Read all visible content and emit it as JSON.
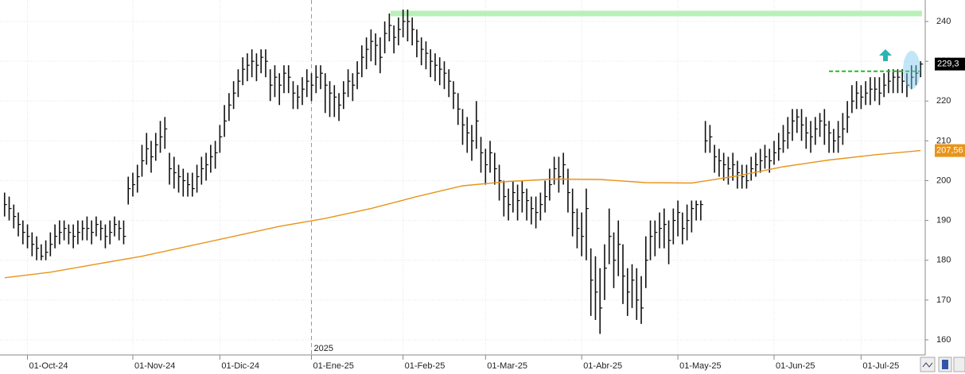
{
  "chart_data": {
    "type": "ohlc",
    "x": [
      -5,
      -4,
      -3,
      -2,
      -1,
      0,
      1,
      2,
      3,
      4,
      5,
      6,
      7,
      8,
      9,
      10,
      11,
      12,
      13,
      14,
      15,
      16,
      17,
      18,
      19,
      20,
      21,
      22,
      23,
      24,
      25,
      26,
      27,
      28,
      29,
      30,
      31,
      32,
      33,
      34,
      35,
      36,
      37,
      38,
      39,
      40,
      41,
      42,
      43,
      44,
      45,
      46,
      47,
      48,
      49,
      50,
      51,
      52,
      53,
      54,
      55,
      56,
      57,
      58,
      59,
      60,
      61,
      62,
      63,
      64,
      65,
      66,
      67,
      68,
      69,
      70,
      71,
      72,
      73,
      74,
      75,
      76,
      77,
      78,
      79,
      80,
      81,
      82,
      83,
      84,
      85,
      86,
      87,
      88,
      89,
      90,
      91,
      92,
      93,
      94,
      95,
      96,
      97,
      98,
      99,
      100,
      101,
      102,
      103,
      104,
      105,
      106,
      107,
      108,
      109,
      110,
      111,
      112,
      113,
      114,
      115,
      116,
      117,
      118,
      119,
      120,
      121,
      122,
      123,
      124,
      125,
      126,
      127,
      128,
      129,
      130,
      131,
      132,
      133,
      134,
      135,
      136,
      137,
      138,
      139,
      140,
      141,
      142,
      143,
      144,
      145,
      146,
      147,
      148,
      149,
      150,
      151,
      152,
      153,
      154,
      155,
      156,
      157,
      158,
      159,
      160,
      161,
      162,
      163,
      164,
      165,
      166,
      167,
      168,
      169,
      170,
      171,
      172,
      173,
      174,
      175,
      176,
      177,
      178,
      179,
      180,
      181,
      182,
      183,
      184,
      185,
      186,
      187,
      188,
      189,
      190,
      191,
      192,
      193,
      194,
      195
    ],
    "high": [
      197,
      196,
      194,
      192,
      190,
      189,
      187,
      186,
      184,
      185,
      187,
      189,
      190,
      190,
      189,
      189,
      190,
      190,
      191,
      190,
      191,
      190,
      189,
      190,
      191,
      190,
      190,
      201,
      202,
      204,
      209,
      212,
      210,
      212,
      215,
      216,
      207,
      206,
      204,
      203,
      202,
      202,
      204,
      206,
      207,
      209,
      210,
      214,
      219,
      222,
      225,
      228,
      231,
      232,
      233,
      232,
      233,
      233,
      228,
      229,
      227,
      229,
      229,
      225,
      224,
      226,
      228,
      227,
      229,
      229,
      227,
      225,
      224,
      222,
      225,
      228,
      227,
      230,
      234,
      236,
      238,
      237,
      236,
      240,
      242,
      239,
      241,
      243,
      243,
      241,
      238,
      236,
      235,
      233,
      232,
      231,
      230,
      228,
      225,
      222,
      218,
      216,
      214,
      220,
      211,
      208,
      210,
      207,
      204,
      200,
      198,
      200,
      199,
      200,
      198,
      196,
      196,
      197,
      200,
      203,
      206,
      206,
      207,
      203,
      198,
      193,
      192,
      198,
      183,
      181,
      178,
      184,
      193,
      187,
      190,
      184,
      178,
      179,
      178,
      176,
      186,
      190,
      190,
      192,
      193,
      190,
      193,
      195,
      192,
      194,
      195,
      195,
      195,
      215,
      214,
      209,
      208,
      207,
      206,
      207,
      205,
      204,
      204,
      206,
      207,
      208,
      209,
      208,
      210,
      212,
      214,
      216,
      218,
      218,
      218,
      216,
      215,
      216,
      217,
      218,
      215,
      213,
      215,
      217,
      220,
      224,
      225,
      224,
      225,
      226,
      226,
      226,
      227,
      228,
      228,
      228,
      228,
      227,
      229,
      229,
      230
    ],
    "low": [
      191,
      190,
      188,
      186,
      184,
      183,
      181,
      180,
      180,
      180,
      181,
      183,
      184,
      185,
      184,
      183,
      184,
      185,
      185,
      184,
      186,
      185,
      183,
      184,
      186,
      185,
      184,
      194,
      196,
      197,
      201,
      204,
      202,
      205,
      207,
      208,
      199,
      198,
      197,
      196,
      196,
      196,
      197,
      199,
      200,
      202,
      203,
      207,
      211,
      215,
      218,
      221,
      224,
      225,
      226,
      225,
      227,
      226,
      220,
      221,
      219,
      222,
      222,
      218,
      218,
      219,
      221,
      220,
      222,
      223,
      217,
      216,
      216,
      215,
      218,
      221,
      220,
      223,
      226,
      228,
      230,
      229,
      227,
      232,
      235,
      232,
      234,
      236,
      235,
      234,
      231,
      229,
      228,
      226,
      225,
      224,
      223,
      221,
      218,
      214,
      209,
      207,
      205,
      208,
      202,
      199,
      202,
      199,
      195,
      191,
      190,
      192,
      190,
      192,
      190,
      189,
      188,
      190,
      192,
      195,
      199,
      197,
      199,
      192,
      186,
      183,
      181,
      180,
      166,
      165,
      161.5,
      170,
      179,
      173,
      176,
      169,
      166,
      168,
      165,
      164,
      173,
      180,
      181,
      183,
      183,
      179,
      184,
      186,
      184,
      185,
      187,
      190,
      190,
      207,
      207,
      202,
      201,
      200,
      199,
      200,
      198,
      198,
      198,
      200,
      201,
      202,
      203,
      202,
      204,
      205,
      207,
      208,
      210,
      212,
      210,
      208,
      207,
      209,
      211,
      209,
      207,
      207,
      207,
      209,
      212,
      217,
      218,
      218,
      219,
      219,
      220,
      219,
      221,
      222,
      222,
      222,
      222,
      221,
      223,
      224,
      226
    ],
    "close": [
      194,
      193,
      191,
      189,
      187,
      186,
      184,
      183,
      181,
      182,
      184,
      186,
      187,
      188,
      187,
      186,
      187,
      188,
      188,
      187,
      189,
      188,
      186,
      187,
      189,
      188,
      186,
      198,
      199,
      201,
      205,
      208,
      206,
      209,
      211,
      213,
      203,
      202,
      201,
      200,
      199,
      198,
      201,
      203,
      204,
      206,
      207,
      211,
      215,
      219,
      222,
      225,
      228,
      229,
      230,
      229,
      231,
      230,
      224,
      226,
      224,
      227,
      226,
      222,
      221,
      223,
      225,
      224,
      226,
      227,
      224,
      222,
      221,
      219,
      222,
      225,
      224,
      227,
      231,
      233,
      235,
      234,
      231,
      237,
      239,
      236,
      238,
      240,
      240,
      238,
      235,
      233,
      232,
      230,
      229,
      228,
      227,
      225,
      222,
      218,
      214,
      212,
      210,
      215,
      207,
      204,
      207,
      203,
      200,
      196,
      194,
      197,
      195,
      197,
      195,
      193,
      192,
      194,
      196,
      199,
      203,
      201,
      204,
      197,
      192,
      188,
      186,
      193,
      175,
      172,
      168,
      178,
      186,
      180,
      184,
      176,
      172,
      175,
      170,
      168,
      180,
      186,
      187,
      188,
      189,
      185,
      190,
      192,
      188,
      190,
      193,
      194,
      194,
      210,
      211,
      206,
      205,
      204,
      203,
      204,
      202,
      201,
      200,
      203,
      204,
      205,
      206,
      205,
      207,
      208,
      210,
      212,
      215,
      216,
      214,
      212,
      211,
      213,
      215,
      214,
      212,
      210,
      211,
      213,
      216,
      220,
      222,
      221,
      222,
      223,
      223,
      222,
      224,
      225,
      226,
      226,
      225,
      224,
      226,
      227,
      229.3
    ],
    "bar_color": "#111111",
    "ma": {
      "color": "#e8941a",
      "x": [
        -5,
        5,
        15,
        25,
        35,
        45,
        55,
        65,
        75,
        85,
        95,
        105,
        115,
        125,
        135,
        145,
        155,
        165,
        175,
        185,
        195
      ],
      "values": [
        175.6,
        177,
        179,
        181,
        183.5,
        186,
        188.5,
        190.5,
        193,
        196,
        198.7,
        199.8,
        200.4,
        200.3,
        199.5,
        199.4,
        201.2,
        203.5,
        205.2,
        206.5,
        207.56
      ]
    },
    "last_price": {
      "value": 229.3,
      "label": "229,3"
    },
    "ma_last": {
      "value": 207.56,
      "label": "207,56"
    },
    "resistance_level": 242,
    "resistance_color": "#b8f0b8",
    "breakout_level": 227.5,
    "breakout_color": "#22bb22",
    "year_marker": {
      "value": 62,
      "label": "2025"
    },
    "xlim": [
      -6,
      196
    ],
    "ylim": [
      156.2,
      245.4
    ],
    "xticks": [
      {
        "value": 0,
        "label": "01-Oct-24"
      },
      {
        "value": 23,
        "label": "01-Nov-24"
      },
      {
        "value": 42,
        "label": "01-Dic-24"
      },
      {
        "value": 62,
        "label": "01-Ene-25"
      },
      {
        "value": 82,
        "label": "01-Feb-25"
      },
      {
        "value": 100,
        "label": "01-Mar-25"
      },
      {
        "value": 121,
        "label": "01-Abr-25"
      },
      {
        "value": 142,
        "label": "01-May-25"
      },
      {
        "value": 163,
        "label": "01-Jun-25"
      },
      {
        "value": 182,
        "label": "01-Jul-25"
      }
    ],
    "yticks": [
      160,
      170,
      180,
      190,
      200,
      210,
      220,
      230,
      240
    ],
    "grid": true
  }
}
